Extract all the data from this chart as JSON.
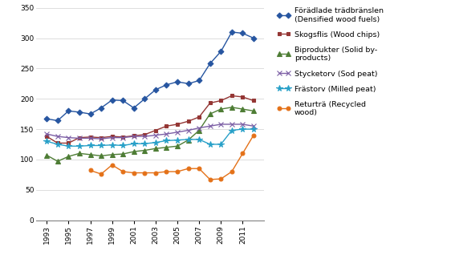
{
  "years": [
    1993,
    1994,
    1995,
    1996,
    1997,
    1998,
    1999,
    2000,
    2001,
    2002,
    2003,
    2004,
    2005,
    2006,
    2007,
    2008,
    2009,
    2010,
    2011,
    2012
  ],
  "foradlade": [
    167,
    164,
    180,
    178,
    175,
    185,
    198,
    197,
    185,
    200,
    215,
    223,
    228,
    225,
    230,
    258,
    278,
    310,
    308,
    300
  ],
  "skogsflis": [
    138,
    127,
    127,
    136,
    137,
    136,
    138,
    137,
    139,
    141,
    148,
    155,
    158,
    163,
    170,
    193,
    197,
    205,
    203,
    197
  ],
  "biprodukter": [
    107,
    97,
    105,
    110,
    108,
    106,
    108,
    109,
    113,
    115,
    118,
    120,
    122,
    132,
    148,
    175,
    183,
    186,
    183,
    180
  ],
  "stycketorv": [
    142,
    138,
    136,
    135,
    135,
    134,
    136,
    136,
    138,
    138,
    140,
    142,
    145,
    148,
    152,
    155,
    158,
    158,
    158,
    155
  ],
  "frastorv": [
    130,
    125,
    122,
    122,
    123,
    123,
    124,
    123,
    126,
    126,
    128,
    131,
    132,
    133,
    133,
    125,
    125,
    148,
    150,
    150
  ],
  "returtra": [
    null,
    null,
    null,
    null,
    82,
    76,
    91,
    80,
    78,
    78,
    78,
    80,
    80,
    85,
    85,
    67,
    68,
    80,
    110,
    140
  ],
  "series_colors": {
    "foradlade": "#2655a0",
    "skogsflis": "#943634",
    "biprodukter": "#4e7d35",
    "stycketorv": "#7c5ea5",
    "frastorv": "#28a0c8",
    "returtra": "#e47118"
  },
  "series_labels": {
    "foradlade": "Förädlade trädbränslen\n(Densified wood fuels)",
    "skogsflis": "Skogsflis (Wood chips)",
    "biprodukter": "Biprodukter (Solid by-\nproducts)",
    "stycketorv": "Stycketorv (Sod peat)",
    "frastorv": "Frästorv (Milled peat)",
    "returtra": "Returträ (Recycled\nwood)"
  },
  "ylim": [
    0,
    350
  ],
  "yticks": [
    0,
    50,
    100,
    150,
    200,
    250,
    300,
    350
  ],
  "xticks": [
    1993,
    1995,
    1997,
    1999,
    2001,
    2003,
    2005,
    2007,
    2009,
    2011
  ],
  "background_color": "#ffffff",
  "grid_color": "#d0d0d0"
}
